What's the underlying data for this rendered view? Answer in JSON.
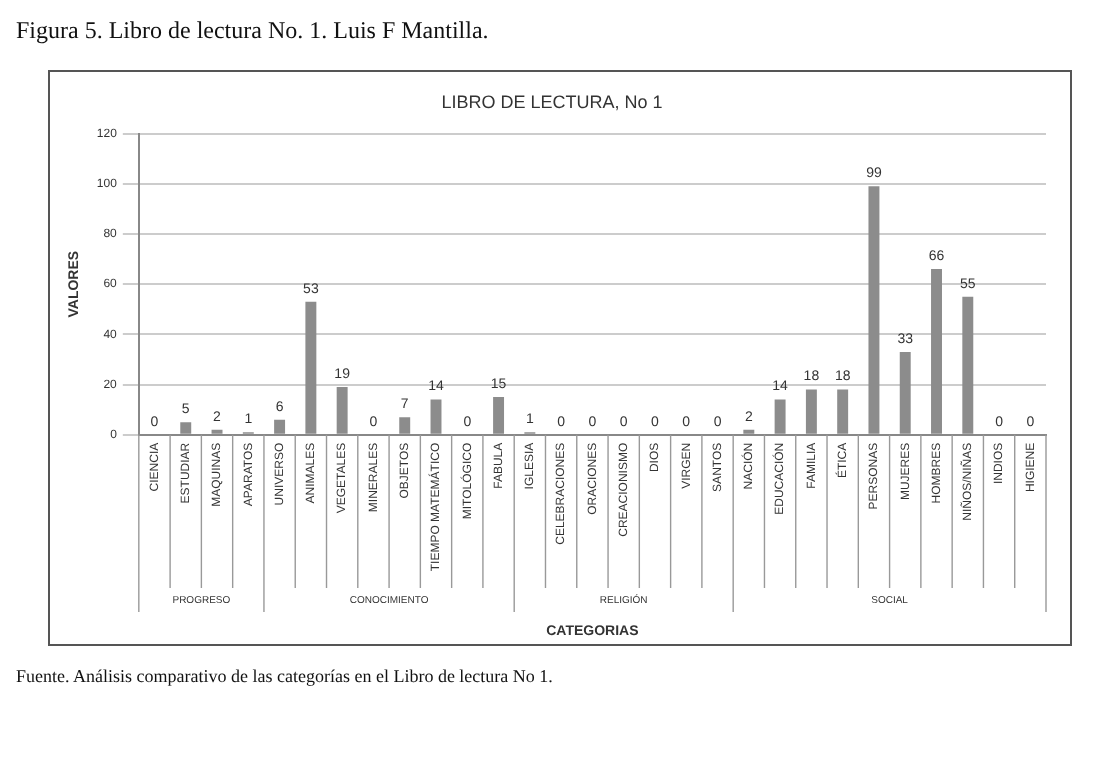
{
  "chart_data": {
    "type": "bar",
    "title": "LIBRO DE LECTURA, No 1",
    "xlabel": "CATEGORIAS",
    "ylabel": "VALORES",
    "categories": [
      "CIENCIA",
      "ESTUDIAR",
      "MAQUINAS",
      "APARATOS",
      "UNIVERSO",
      "ANIMALES",
      "VEGETALES",
      "MINERALES",
      "OBJETOS",
      "TIEMPO MATEMÁTICO",
      "MITOLÓGICO",
      "FABULA",
      "IGLESIA",
      "CELEBRACIONES",
      "ORACIONES",
      "CREACIONISMO",
      "DIOS",
      "VIRGEN",
      "SANTOS",
      "NACIÓN",
      "EDUCACIÓN",
      "FAMILIA",
      "ÉTICA",
      "PERSONAS",
      "MUJERES",
      "HOMBRES",
      "NIÑOS/NIÑAS",
      "INDIOS",
      "HIGIENE"
    ],
    "values": [
      0,
      5,
      2,
      1,
      6,
      53,
      19,
      0,
      7,
      14,
      0,
      15,
      1,
      0,
      0,
      0,
      0,
      0,
      0,
      2,
      14,
      18,
      18,
      99,
      33,
      66,
      55,
      0,
      0
    ],
    "color": "#8c8c8c",
    "ylim": [
      0,
      120
    ],
    "yticks": [
      0,
      20,
      40,
      60,
      80,
      100,
      120
    ],
    "grid": "y",
    "data_labels": true,
    "legend": false,
    "annotations": [
      "Figura 5. Libro de lectura No. 1. Luis F Mantilla.",
      "PROGRESO",
      "CONOCIMIENTO",
      "RELIGIÓN",
      "SOCIAL",
      "Fuente. Análisis comparativo de las categorías en el Libro de lectura No 1."
    ]
  }
}
